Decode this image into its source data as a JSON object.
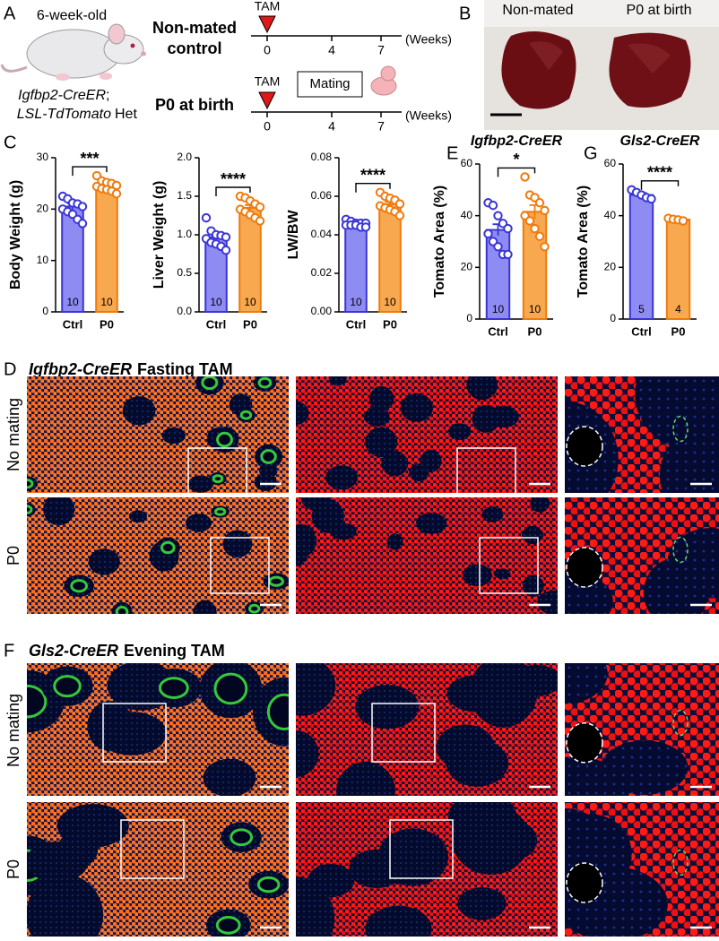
{
  "panel_labels": [
    "A",
    "B",
    "C",
    "D",
    "E",
    "F",
    "G"
  ],
  "panel_a": {
    "age": "6-week-old",
    "genotype_line1": "Igfbp2-CreER",
    "genotype_sep": ";",
    "genotype_line2_italic": "LSL-TdTomato",
    "genotype_line2_rest": "Het",
    "group1_line1": "Non-mated",
    "group1_line2": "control",
    "group2": "P0 at birth",
    "tam": "TAM",
    "mating": "Mating",
    "ticks": [
      0,
      4,
      7
    ],
    "unit": "(Weeks)"
  },
  "panel_b": {
    "labels": [
      "Non-mated",
      "P0 at birth"
    ]
  },
  "chart_data": [
    {
      "type": "bar",
      "ylabel": "Body Weight (g)",
      "categories": [
        "Ctrl",
        "P0"
      ],
      "values": [
        20.5,
        24.5
      ],
      "errors": [
        0.6,
        0.4
      ],
      "colors": [
        "#8e8cf3",
        "#f8a84e"
      ],
      "stroke_colors": [
        "#3a35d6",
        "#f07a0c"
      ],
      "points": [
        [
          22.5,
          22,
          21.2,
          21,
          20.5,
          20,
          19.5,
          19,
          18,
          17.2
        ],
        [
          26.5,
          25.5,
          25.2,
          25,
          24.6,
          24.4,
          24,
          23.8,
          23.5,
          23
        ]
      ],
      "n_labels": [
        "10",
        "10"
      ],
      "significance": "***",
      "ylim": [
        0,
        30
      ],
      "yticks": [
        0,
        10,
        20,
        30
      ]
    },
    {
      "type": "bar",
      "ylabel": "Liver Weight (g)",
      "categories": [
        "Ctrl",
        "P0"
      ],
      "values": [
        0.97,
        1.35
      ],
      "errors": [
        0.04,
        0.035
      ],
      "colors": [
        "#8e8cf3",
        "#f8a84e"
      ],
      "stroke_colors": [
        "#3a35d6",
        "#f07a0c"
      ],
      "points": [
        [
          1.22,
          1.05,
          1.0,
          0.99,
          0.97,
          0.95,
          0.9,
          0.88,
          0.85,
          0.8
        ],
        [
          1.5,
          1.48,
          1.44,
          1.4,
          1.36,
          1.33,
          1.3,
          1.26,
          1.22,
          1.18
        ]
      ],
      "n_labels": [
        "10",
        "10"
      ],
      "significance": "****",
      "ylim": [
        0,
        2
      ],
      "yticks": [
        {
          "value": 0,
          "label": "0.0"
        },
        0.5,
        {
          "value": 1,
          "label": "1.0"
        },
        1.5,
        {
          "value": 2,
          "label": "2.0"
        }
      ]
    },
    {
      "type": "bar",
      "ylabel": "LW/BW",
      "categories": [
        "Ctrl",
        "P0"
      ],
      "values": [
        0.046,
        0.056
      ],
      "errors": [
        0.0005,
        0.0012
      ],
      "colors": [
        "#8e8cf3",
        "#f8a84e"
      ],
      "stroke_colors": [
        "#3a35d6",
        "#f07a0c"
      ],
      "points": [
        [
          0.048,
          0.047,
          0.046,
          0.046,
          0.046,
          0.045,
          0.045,
          0.045,
          0.044,
          0.044
        ],
        [
          0.062,
          0.06,
          0.059,
          0.058,
          0.056,
          0.055,
          0.054,
          0.053,
          0.052,
          0.05
        ]
      ],
      "n_labels": [
        "10",
        "10"
      ],
      "significance": "****",
      "ylim": [
        0,
        0.08
      ],
      "yticks": [
        {
          "value": 0,
          "label": "0.00"
        },
        0.02,
        0.04,
        0.06,
        {
          "value": 0.08,
          "label": "0.08"
        }
      ]
    },
    {
      "type": "bar",
      "title": "Igfbp2-CreER",
      "ylabel": "Tomato Area (%)",
      "categories": [
        "Ctrl",
        "P0"
      ],
      "values": [
        34.5,
        41.5
      ],
      "errors": [
        2.2,
        2.6
      ],
      "colors": [
        "#8e8cf3",
        "#f8a84e"
      ],
      "stroke_colors": [
        "#3a35d6",
        "#f07a0c"
      ],
      "points": [
        [
          45,
          44,
          40,
          37,
          35,
          33,
          30,
          28,
          25,
          25
        ],
        [
          55,
          48,
          47,
          45,
          42,
          40,
          38,
          35,
          32,
          28
        ]
      ],
      "n_labels": [
        "10",
        "10"
      ],
      "significance": "*",
      "ylim": [
        0,
        60
      ],
      "yticks": [
        0,
        20,
        40,
        60
      ]
    },
    {
      "type": "bar",
      "title": "Gls2-CreER",
      "ylabel": "Tomato Area (%)",
      "categories": [
        "Ctrl",
        "P0"
      ],
      "values": [
        48,
        38.5
      ],
      "errors": [
        0.8,
        0.3
      ],
      "colors": [
        "#8e8cf3",
        "#f8a84e"
      ],
      "stroke_colors": [
        "#3a35d6",
        "#f07a0c"
      ],
      "points": [
        [
          50,
          49,
          48,
          47,
          46.5
        ],
        [
          39,
          38.6,
          38.4,
          38
        ]
      ],
      "n_labels": [
        "5",
        "4"
      ],
      "significance": "****",
      "ylim": [
        0,
        60
      ],
      "yticks": [
        0,
        20,
        40,
        60
      ]
    }
  ],
  "panel_d": {
    "title_italic": "Igfbp2-CreER",
    "title_rest": "Fasting TAM",
    "rows": [
      "No mating",
      "P0"
    ]
  },
  "panel_f": {
    "title_italic": "Gls2-CreER",
    "title_rest": "Evening TAM",
    "rows": [
      "No mating",
      "P0"
    ]
  }
}
